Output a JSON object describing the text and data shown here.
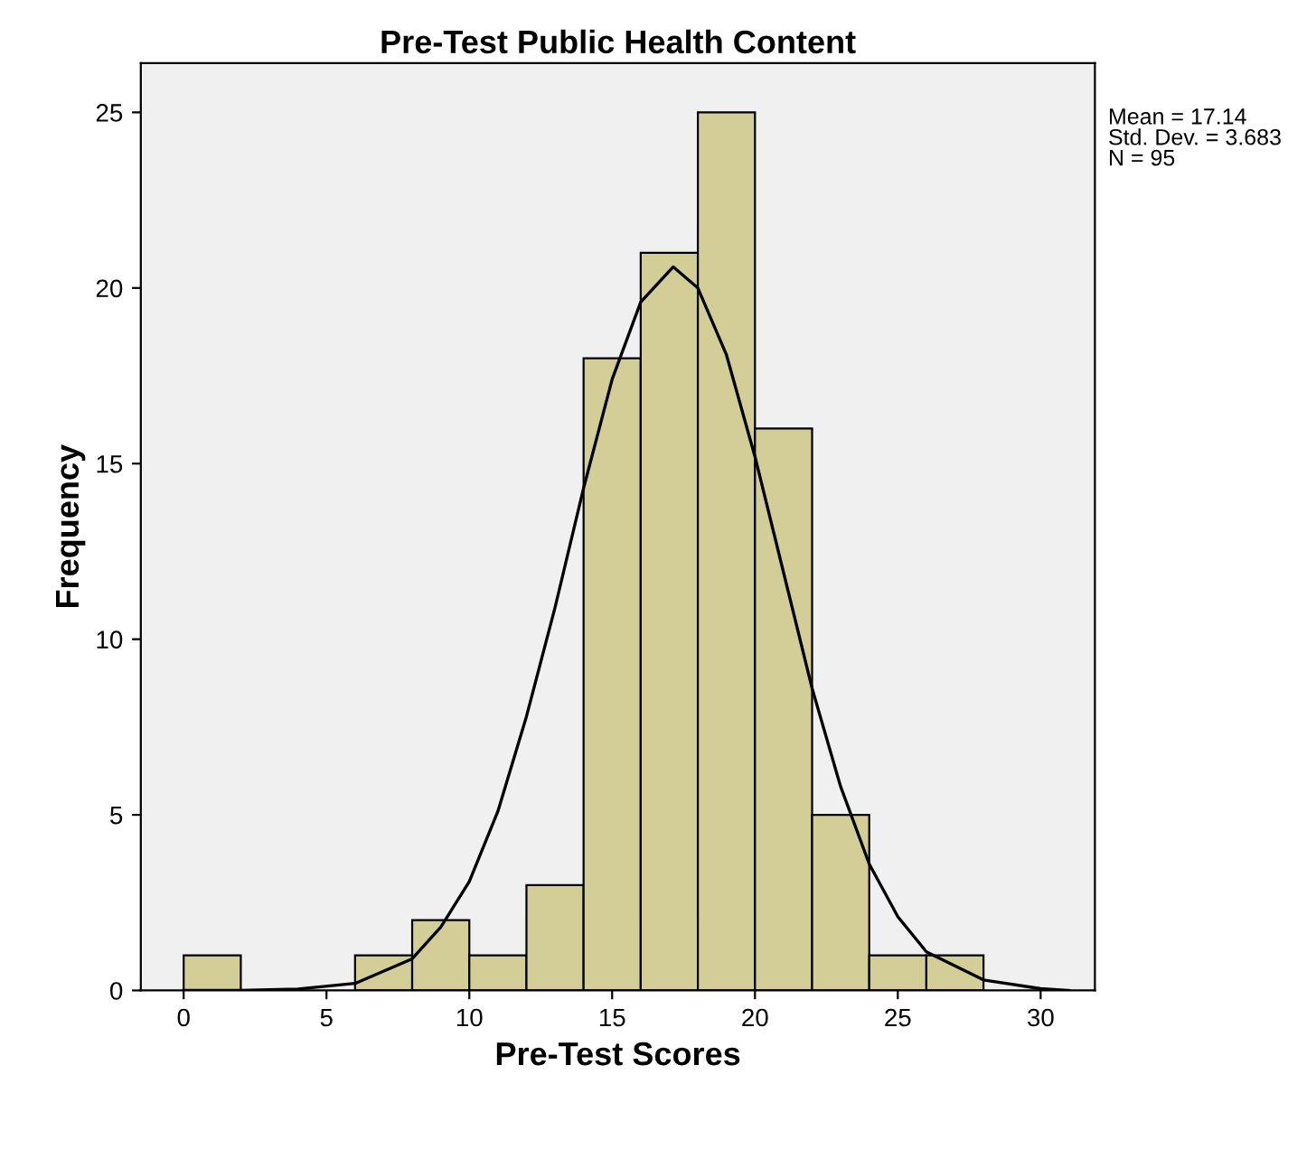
{
  "chart_data": {
    "type": "histogram",
    "title": "Pre-Test Public Health Content",
    "xlabel": "Pre-Test Scores",
    "ylabel": "Frequency",
    "annotations": [
      "Mean = 17.14",
      "Std. Dev. = 3.683",
      "N = 95"
    ],
    "series": [
      {
        "color": "#d3ce97",
        "bins": [
          0,
          2,
          4,
          6,
          8,
          10,
          12,
          14,
          16,
          18,
          20,
          22,
          24,
          26,
          28
        ],
        "values": [
          1,
          0,
          0,
          1,
          2,
          1,
          3,
          18,
          21,
          25,
          16,
          5,
          1,
          1
        ]
      },
      {
        "type": "line",
        "color": "#000000",
        "x": [
          0,
          2,
          4,
          6,
          8,
          9,
          10,
          11,
          12,
          13,
          14,
          15,
          16,
          17.14,
          18,
          19,
          20,
          21,
          22,
          23,
          24,
          25,
          26,
          28,
          30,
          31
        ],
        "values": [
          0,
          0,
          0.04,
          0.2,
          0.9,
          1.8,
          3.1,
          5.1,
          7.8,
          10.9,
          14.3,
          17.4,
          19.6,
          20.6,
          20,
          18.1,
          15.2,
          11.9,
          8.6,
          5.8,
          3.6,
          2.1,
          1.1,
          0.3,
          0.05,
          0
        ]
      }
    ],
    "xlim": [
      -1.5,
      31.9
    ],
    "xticks": [
      0,
      5,
      10,
      15,
      20,
      25,
      30
    ],
    "ylim": [
      0,
      26.4
    ],
    "yticks": [
      0,
      5,
      10,
      15,
      20,
      25
    ],
    "grid": false,
    "legend": false
  }
}
